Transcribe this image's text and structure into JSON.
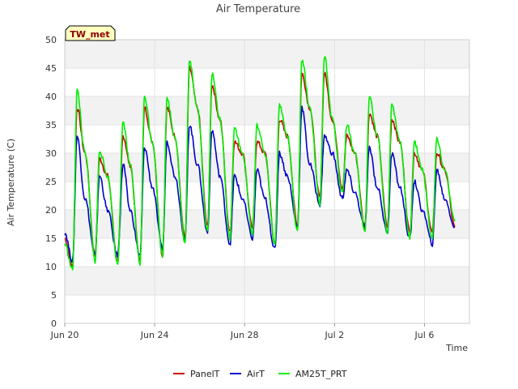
{
  "chart_data": {
    "type": "line",
    "title": "Air Temperature",
    "xlabel": "Time",
    "ylabel": "Air Temperature (C)",
    "site_label": "TW_met",
    "ylim": [
      0,
      50
    ],
    "xlim": [
      0,
      18
    ],
    "x_unit": "days since Jun 20",
    "x_ticks": [
      {
        "value": 0,
        "label": "Jun 20"
      },
      {
        "value": 4,
        "label": "Jun 24"
      },
      {
        "value": 8,
        "label": "Jun 28"
      },
      {
        "value": 12,
        "label": "Jul 2"
      },
      {
        "value": 16,
        "label": "Jul 6"
      }
    ],
    "y_ticks": [
      0,
      5,
      10,
      15,
      20,
      25,
      30,
      35,
      40,
      45,
      50
    ],
    "grid": true,
    "legend_position": "bottom",
    "series": [
      {
        "name": "PanelT",
        "color": "#cc0000",
        "x": [
          0.0,
          0.35,
          0.55,
          0.9,
          1.35,
          1.55,
          1.9,
          2.35,
          2.6,
          2.9,
          3.35,
          3.55,
          3.9,
          4.35,
          4.55,
          4.9,
          5.35,
          5.55,
          5.9,
          6.35,
          6.55,
          6.9,
          7.35,
          7.55,
          7.9,
          8.35,
          8.55,
          8.9,
          9.35,
          9.55,
          9.9,
          10.35,
          10.55,
          10.9,
          11.35,
          11.55,
          11.9,
          12.35,
          12.55,
          12.9,
          13.35,
          13.55,
          13.9,
          14.35,
          14.55,
          14.9,
          15.35,
          15.55,
          15.9,
          16.35,
          16.55,
          16.9,
          17.35
        ],
        "y": [
          15,
          10,
          38,
          30,
          12,
          29,
          26,
          11,
          33,
          28,
          11,
          38,
          32,
          12,
          38,
          33,
          15,
          45,
          38,
          17,
          42,
          36,
          16,
          32,
          30,
          17,
          32,
          30,
          14,
          36,
          33,
          17,
          44,
          38,
          22,
          44,
          36,
          24,
          33,
          30,
          17,
          37,
          33,
          17,
          36,
          32,
          16,
          30,
          27,
          16,
          30,
          27,
          17
        ]
      },
      {
        "name": "AirT",
        "color": "#0000cc",
        "x": [
          0.0,
          0.35,
          0.55,
          0.9,
          1.35,
          1.55,
          1.9,
          2.35,
          2.6,
          2.9,
          3.35,
          3.55,
          3.9,
          4.35,
          4.55,
          4.9,
          5.35,
          5.55,
          5.9,
          6.35,
          6.55,
          6.9,
          7.35,
          7.55,
          7.9,
          8.35,
          8.55,
          8.9,
          9.35,
          9.55,
          9.9,
          10.35,
          10.55,
          10.9,
          11.35,
          11.55,
          11.9,
          12.35,
          12.55,
          12.9,
          13.35,
          13.55,
          13.9,
          14.35,
          14.55,
          14.9,
          15.35,
          15.55,
          15.9,
          16.35,
          16.55,
          16.9,
          17.35
        ],
        "y": [
          16,
          11,
          33,
          22,
          12,
          26,
          20,
          12,
          28,
          20,
          12,
          31,
          24,
          13,
          32,
          26,
          15,
          35,
          28,
          16,
          34,
          26,
          14,
          26,
          22,
          15,
          27,
          22,
          13,
          30,
          26,
          17,
          38,
          28,
          21,
          33,
          30,
          22,
          27,
          23,
          17,
          31,
          24,
          16,
          30,
          24,
          15,
          25,
          20,
          14,
          27,
          22,
          17
        ]
      },
      {
        "name": "AM25T_PRT",
        "color": "#00ee00",
        "x": [
          0.0,
          0.35,
          0.55,
          0.9,
          1.35,
          1.55,
          1.9,
          2.35,
          2.6,
          2.9,
          3.35,
          3.55,
          3.9,
          4.35,
          4.55,
          4.9,
          5.35,
          5.55,
          5.9,
          6.35,
          6.55,
          6.9,
          7.35,
          7.55,
          7.9,
          8.35,
          8.55,
          8.9,
          9.35,
          9.55,
          9.9,
          10.35,
          10.55,
          10.9,
          11.35,
          11.55,
          11.9,
          12.35,
          12.55,
          12.9,
          13.35,
          13.55,
          13.9,
          14.35,
          14.55,
          14.9,
          15.35,
          15.55,
          15.9,
          16.35,
          16.55,
          16.9,
          17.35
        ],
        "y": [
          14,
          9.5,
          41,
          30,
          11,
          30.5,
          26,
          10.5,
          35.5,
          28,
          10.5,
          40,
          32,
          12,
          39.5,
          33,
          14,
          46.5,
          38,
          16,
          44,
          36,
          15,
          34.5,
          30,
          16,
          35,
          30,
          14,
          38.5,
          33,
          16,
          46.5,
          38,
          21,
          47,
          36,
          23,
          35,
          30,
          16,
          40,
          33,
          16,
          38.5,
          32,
          15,
          32,
          27,
          15,
          32.5,
          27,
          18
        ]
      }
    ]
  }
}
